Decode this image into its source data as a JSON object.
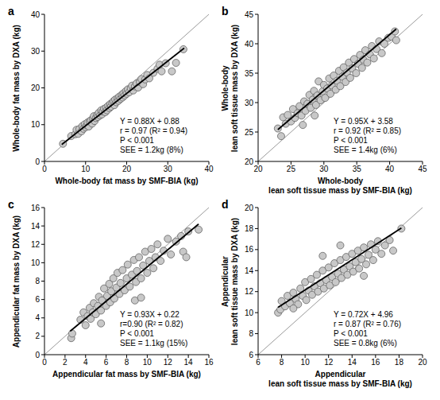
{
  "chart_data": [
    {
      "type": "scatter",
      "title": "a",
      "xlabel": "Whole-body fat mass by SMF-BIA (kg)",
      "ylabel": "Whole-body fat mass by DXA (kg)",
      "xlim": [
        0,
        40
      ],
      "ylim": [
        0,
        40
      ],
      "xticks": [
        0,
        10,
        20,
        30,
        40
      ],
      "yticks": [
        0,
        10,
        20,
        30,
        40
      ],
      "color": "#c8c8c8",
      "marker": "circle",
      "annotations": [
        "Y = 0.88X + 0.88",
        "r = 0.97 (R² = 0.94)",
        "P < 0.001",
        "SEE = 1.2kg (8%)"
      ],
      "x": [
        4.5,
        6.5,
        7.5,
        7.8,
        8.2,
        8.5,
        9.0,
        9.2,
        9.5,
        9.8,
        10.0,
        10.3,
        10.5,
        10.8,
        11.0,
        11.3,
        11.6,
        11.8,
        12.0,
        12.2,
        12.5,
        12.8,
        13.0,
        13.2,
        13.5,
        13.8,
        14.0,
        14.2,
        14.5,
        14.8,
        15.0,
        15.2,
        15.5,
        15.8,
        16.0,
        16.2,
        16.5,
        16.8,
        17.0,
        17.2,
        17.5,
        17.8,
        18.0,
        18.2,
        18.5,
        18.8,
        19.0,
        19.2,
        19.5,
        19.8,
        20.0,
        20.3,
        20.6,
        21.0,
        21.3,
        21.6,
        22.0,
        22.4,
        22.8,
        23.2,
        23.6,
        24.0,
        24.5,
        25.0,
        25.5,
        26.5,
        27.5,
        28.0,
        28.5,
        29.5,
        31.0,
        32.0,
        33.8
      ],
      "values": [
        4.8,
        6.9,
        7.4,
        8.6,
        7.5,
        8.8,
        8.2,
        9.6,
        8.9,
        10.1,
        9.3,
        9.8,
        10.6,
        9.5,
        10.9,
        11.2,
        10.3,
        11.6,
        12.3,
        11.0,
        11.8,
        12.6,
        12.1,
        13.2,
        12.5,
        13.9,
        12.8,
        13.6,
        14.3,
        13.4,
        14.6,
        13.9,
        15.1,
        14.5,
        15.6,
        14.9,
        15.9,
        16.4,
        15.3,
        16.8,
        16.1,
        17.2,
        16.5,
        17.6,
        17.0,
        18.1,
        17.4,
        18.5,
        17.9,
        19.1,
        18.4,
        19.6,
        18.8,
        19.9,
        20.6,
        19.3,
        20.4,
        21.2,
        20.1,
        21.6,
        22.4,
        21.0,
        22.3,
        23.5,
        22.6,
        24.1,
        25.2,
        26.3,
        24.5,
        26.7,
        24.5,
        26.8,
        30.5
      ],
      "fit_line": {
        "x": [
          4.2,
          34
        ],
        "values": [
          4.6,
          30.8
        ]
      }
    },
    {
      "type": "scatter",
      "title": "b",
      "xlabel": [
        "Whole-body",
        "lean soft tissue mass by SMF-BIA (kg)"
      ],
      "ylabel": [
        "Whole-body",
        "lean soft tissue mass by DXA (kg)"
      ],
      "xlim": [
        20,
        45
      ],
      "ylim": [
        20,
        45
      ],
      "xticks": [
        20,
        25,
        30,
        35,
        40,
        45
      ],
      "yticks": [
        20,
        25,
        30,
        35,
        40,
        45
      ],
      "color": "#c8c8c8",
      "marker": "circle",
      "annotations": [
        "Y = 0.95X + 3.58",
        "r = 0.92 (R² = 0.85)",
        "P < 0.001",
        "SEE = 1.4kg (6%)"
      ],
      "x": [
        23.0,
        23.5,
        23.8,
        24.2,
        24.5,
        25.0,
        25.3,
        25.6,
        26.0,
        26.3,
        26.6,
        27.0,
        27.2,
        27.5,
        27.8,
        28.0,
        28.3,
        28.5,
        28.8,
        29.0,
        29.2,
        29.5,
        29.8,
        30.0,
        30.2,
        30.5,
        30.8,
        31.0,
        31.2,
        31.5,
        31.8,
        32.0,
        32.3,
        32.5,
        32.8,
        33.0,
        33.3,
        33.5,
        33.8,
        34.0,
        34.3,
        34.6,
        34.9,
        35.2,
        35.5,
        35.8,
        36.0,
        36.3,
        36.6,
        37.0,
        37.3,
        37.6,
        38.0,
        38.4,
        38.8,
        39.2,
        39.8,
        40.3,
        41.0,
        40.8,
        26.8,
        28.6
      ],
      "values": [
        25.6,
        24.3,
        27.5,
        26.4,
        27.9,
        26.8,
        28.9,
        27.4,
        28.2,
        29.4,
        27.8,
        30.2,
        28.6,
        29.8,
        31.3,
        29.1,
        30.5,
        32.0,
        29.6,
        31.2,
        33.6,
        30.4,
        31.9,
        33.0,
        30.8,
        32.4,
        34.1,
        31.5,
        32.9,
        34.6,
        32.2,
        33.7,
        35.4,
        32.8,
        34.4,
        36.0,
        33.5,
        35.1,
        36.8,
        34.2,
        35.8,
        37.4,
        35.0,
        36.6,
        38.1,
        35.9,
        37.3,
        38.9,
        36.8,
        38.2,
        39.6,
        37.5,
        39.1,
        40.4,
        38.4,
        40.0,
        41.0,
        41.2,
        40.6,
        42.1,
        26.2,
        27.8
      ],
      "fit_line": {
        "x": [
          23,
          41
        ],
        "values": [
          25.4,
          42.5
        ]
      }
    },
    {
      "type": "scatter",
      "title": "c",
      "xlabel": "Appendicular fat mass by SMF-BIA (kg)",
      "ylabel": "Appendicular fat mass by DXA (kg)",
      "xlim": [
        0,
        16
      ],
      "ylim": [
        0,
        16
      ],
      "xticks": [
        0,
        2,
        4,
        6,
        8,
        10,
        12,
        14,
        16
      ],
      "yticks": [
        0,
        2,
        4,
        6,
        8,
        10,
        12,
        14,
        16
      ],
      "color": "#c8c8c8",
      "marker": "circle",
      "annotations": [
        "Y = 0.93X + 0.22",
        "r=0.90 (R² = 0.82)",
        "P < 0.001",
        "SEE = 1.1kg (15%)"
      ],
      "x": [
        2.6,
        2.7,
        3.5,
        3.8,
        4.0,
        4.2,
        4.4,
        4.5,
        4.7,
        4.8,
        5.0,
        5.2,
        5.3,
        5.5,
        5.6,
        5.8,
        6.0,
        6.1,
        6.3,
        6.4,
        6.5,
        6.7,
        6.8,
        7.0,
        7.1,
        7.3,
        7.4,
        7.6,
        7.8,
        8.0,
        8.1,
        8.3,
        8.5,
        8.7,
        8.9,
        9.0,
        9.2,
        9.4,
        9.6,
        9.8,
        10.0,
        10.2,
        10.4,
        10.6,
        10.8,
        11.0,
        11.3,
        11.6,
        12.0,
        12.3,
        12.8,
        13.3,
        13.5,
        13.8,
        14.0,
        15.0,
        8.8,
        9.4,
        5.5
      ],
      "values": [
        1.8,
        2.3,
        3.8,
        4.6,
        3.2,
        4.2,
        5.1,
        3.9,
        4.6,
        5.6,
        4.4,
        5.3,
        6.3,
        4.8,
        5.9,
        7.2,
        5.3,
        6.4,
        7.7,
        5.7,
        6.9,
        8.3,
        6.1,
        7.3,
        8.9,
        6.6,
        7.8,
        9.2,
        7.0,
        8.3,
        9.8,
        7.4,
        8.7,
        10.3,
        7.9,
        9.1,
        10.6,
        8.3,
        9.7,
        11.2,
        8.9,
        10.2,
        11.5,
        9.4,
        10.6,
        12.0,
        10.2,
        11.3,
        12.6,
        10.9,
        12.3,
        12.9,
        11.2,
        10.6,
        13.4,
        13.6,
        5.9,
        6.2,
        3.4
      ],
      "fit_line": {
        "x": [
          2.5,
          15
        ],
        "values": [
          2.55,
          14.2
        ]
      }
    },
    {
      "type": "scatter",
      "title": "d",
      "xlabel": [
        "Appendicular",
        "lean soft tissue mass by SMF-BIA (kg)"
      ],
      "ylabel": [
        "Appendicular",
        "lean soft tissue mass by DXA (kg)"
      ],
      "xlim": [
        6,
        20
      ],
      "ylim": [
        6,
        20
      ],
      "xticks": [
        6,
        8,
        10,
        12,
        14,
        16,
        18,
        20
      ],
      "yticks": [
        6,
        8,
        10,
        12,
        14,
        16,
        18,
        20
      ],
      "color": "#c8c8c8",
      "marker": "circle",
      "annotations": [
        "Y = 0.72X + 4.96",
        "r = 0.87 (R² = 0.76)",
        "P < 0.001",
        "SEE = 0.8kg (6%)"
      ],
      "x": [
        7.7,
        7.9,
        8.0,
        8.3,
        8.5,
        8.7,
        9.0,
        9.2,
        9.4,
        9.6,
        9.8,
        10.0,
        10.1,
        10.3,
        10.5,
        10.6,
        10.8,
        11.0,
        11.1,
        11.3,
        11.5,
        11.6,
        11.8,
        12.0,
        12.1,
        12.3,
        12.5,
        12.6,
        12.8,
        13.0,
        13.1,
        13.3,
        13.5,
        13.6,
        13.8,
        14.0,
        14.1,
        14.3,
        14.5,
        14.6,
        14.8,
        15.0,
        15.2,
        15.4,
        15.6,
        15.8,
        16.0,
        16.2,
        16.5,
        16.8,
        17.2,
        17.5,
        18.2,
        15.0,
        9.0,
        11.5,
        13.0
      ],
      "values": [
        10.0,
        10.3,
        11.1,
        10.6,
        11.6,
        10.9,
        11.9,
        11.3,
        10.8,
        12.3,
        11.6,
        12.9,
        11.2,
        12.1,
        13.2,
        11.7,
        12.5,
        13.6,
        12.0,
        12.8,
        14.0,
        12.3,
        13.1,
        14.3,
        12.6,
        13.4,
        14.7,
        12.9,
        13.7,
        15.0,
        13.3,
        14.1,
        15.3,
        13.6,
        14.4,
        15.6,
        13.9,
        14.8,
        15.9,
        14.2,
        15.1,
        16.2,
        14.6,
        15.5,
        16.5,
        15.0,
        16.0,
        16.8,
        15.6,
        16.4,
        16.9,
        15.9,
        18.0,
        13.5,
        10.4,
        15.4,
        16.4
      ],
      "fit_line": {
        "x": [
          7.7,
          18.2
        ],
        "values": [
          10.5,
          18.06
        ]
      }
    }
  ]
}
